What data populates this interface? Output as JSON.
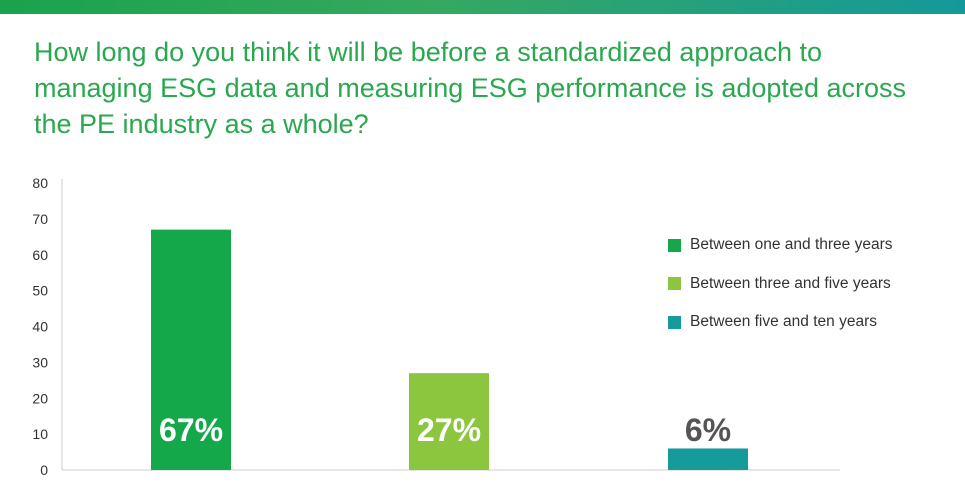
{
  "chart_data": {
    "type": "bar",
    "title": "How long do you think it will be before a standardized approach to managing ESG data and measuring ESG performance is adopted across the PE industry as a whole?",
    "categories": [
      "Between one and three years",
      "Between three and five years",
      "Between five and ten years"
    ],
    "values": [
      67,
      27,
      6
    ],
    "data_labels": [
      "67%",
      "27%",
      "6%"
    ],
    "colors": [
      "#14a84b",
      "#8cc63f",
      "#149b9a"
    ],
    "label_colors": [
      "#ffffff",
      "#ffffff",
      "#555555"
    ],
    "ylim": [
      0,
      80
    ],
    "yticks": [
      0,
      10,
      20,
      30,
      40,
      50,
      60,
      70,
      80
    ],
    "grid": false,
    "legend": "right",
    "xlabel": "",
    "ylabel": ""
  }
}
